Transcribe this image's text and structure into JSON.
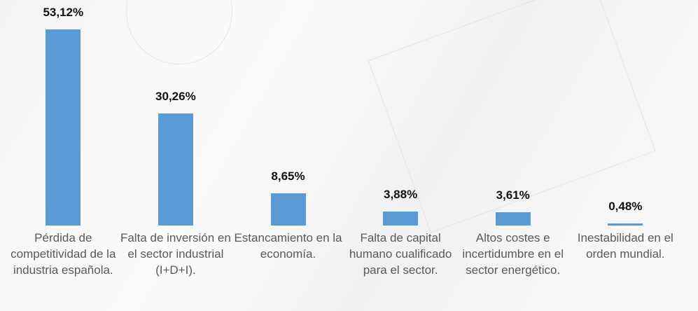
{
  "chart_data": {
    "type": "bar",
    "categories": [
      "Pérdida de competitividad de la industria española.",
      "Falta de inversión en el sector industrial (I+D+I).",
      "Estancamiento en la economía.",
      "Falta de capital humano cualificado para el sector.",
      "Altos costes e incertidumbre en el sector energético.",
      "Inestabilidad en el orden mundial."
    ],
    "values": [
      53.12,
      30.26,
      8.65,
      3.88,
      3.61,
      0.48
    ],
    "value_labels": [
      "53,12%",
      "30,26%",
      "8,65%",
      "3,88%",
      "3,61%",
      "0,48%"
    ],
    "color": "#5b9bd5"
  }
}
